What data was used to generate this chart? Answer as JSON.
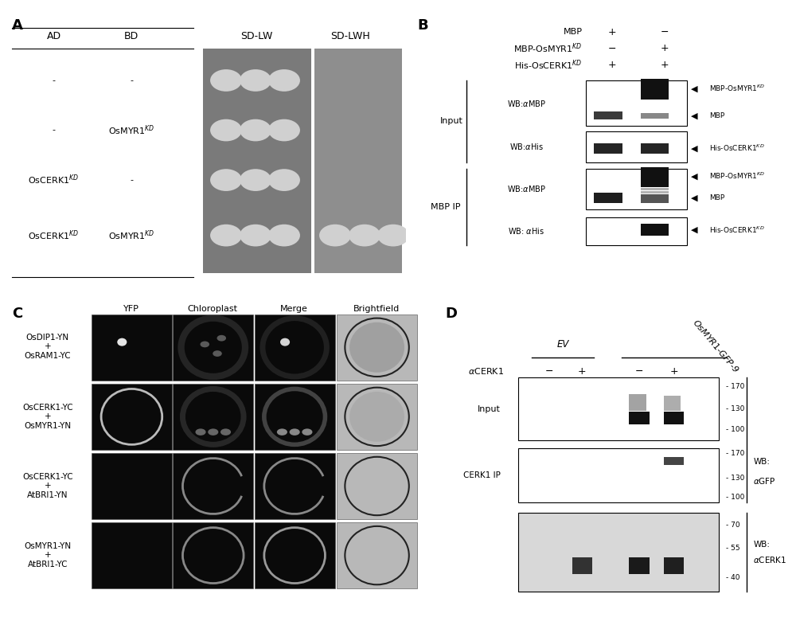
{
  "figure_bg": "#ffffff",
  "panel_A": {
    "label": "A",
    "ad_labels": [
      "-",
      "-",
      "OsCERK1",
      "OsCERK1"
    ],
    "bd_labels": [
      "-",
      "OsMYR1",
      "-",
      "OsMYR1"
    ],
    "sdlw_bg": "#7a7a7a",
    "sdlwh_bg": "#909090",
    "colony_color": "#d2d2d2",
    "num_cols_sdlw": 3,
    "sdlwh_row_visible": [
      false,
      false,
      false,
      true
    ]
  },
  "panel_B": {
    "label": "B",
    "header_labels": [
      "MBP",
      "MBP-OsMYR1KD",
      "His-OsCERK1KD"
    ],
    "header_col1": [
      "+",
      "-",
      "+"
    ],
    "header_col2": [
      "-",
      "+",
      "+"
    ]
  },
  "panel_C": {
    "label": "C",
    "col_headers": [
      "YFP",
      "Chloroplast",
      "Merge",
      "Brightfield"
    ],
    "row_labels": [
      "OsDIP1-YN\n+\nOsRAM1-YC",
      "OsCERK1-YC\n+\nOsMYR1-YN",
      "OsCERK1-YC\n+\nAtBRI1-YN",
      "OsMYR1-YN\n+\nAtBRI1-YC"
    ]
  },
  "panel_D": {
    "label": "D",
    "mw_input": [
      "170",
      "130",
      "100"
    ],
    "mw_cerk1ip": [
      "170",
      "130",
      "100"
    ],
    "mw_bot": [
      "70",
      "55",
      "40"
    ]
  }
}
